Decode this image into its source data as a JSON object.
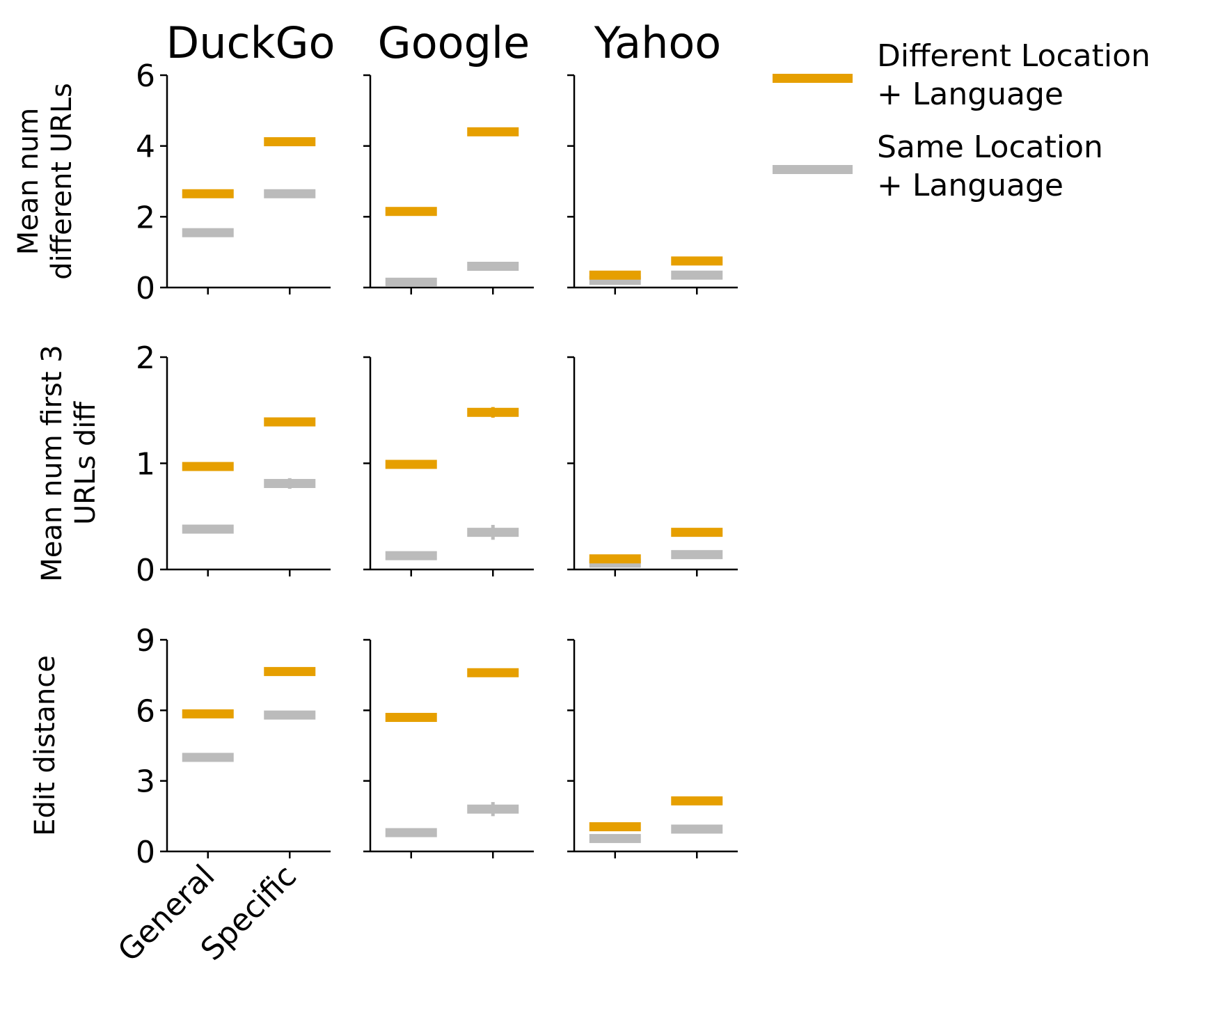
{
  "chart_data": {
    "type": "scatter",
    "layout": "3x3 small multiples",
    "columns": [
      "DuckGo",
      "Google",
      "Yahoo"
    ],
    "categories": [
      "General",
      "Specific"
    ],
    "series_names": [
      "Different Location + Language",
      "Same Location + Language"
    ],
    "legend": {
      "placement": "right",
      "entries": [
        {
          "label": "Different Location\n+ Language",
          "color": "#E69F00"
        },
        {
          "label": "Same Location\n+ Language",
          "color": "#BBBBBB"
        }
      ]
    },
    "rows": [
      {
        "ylabel": "Mean num\ndifferent URLs",
        "ylim": [
          0,
          6
        ],
        "yticks": [
          0,
          2,
          4,
          6
        ],
        "ytick_labels": [
          "0",
          "2",
          "4",
          "6"
        ],
        "panels": [
          {
            "engine": "DuckGo",
            "series": [
              {
                "name": "Different Location + Language",
                "values": [
                  2.65,
                  4.12
                ],
                "err": [
                  0.04,
                  0.05
                ]
              },
              {
                "name": "Same Location + Language",
                "values": [
                  1.55,
                  2.65
                ],
                "err": [
                  0.04,
                  0.08
                ]
              }
            ]
          },
          {
            "engine": "Google",
            "series": [
              {
                "name": "Different Location + Language",
                "values": [
                  2.15,
                  4.4
                ],
                "err": [
                  0.05,
                  0.1
                ]
              },
              {
                "name": "Same Location + Language",
                "values": [
                  0.15,
                  0.6
                ],
                "err": [
                  0.03,
                  0.06
                ]
              }
            ]
          },
          {
            "engine": "Yahoo",
            "series": [
              {
                "name": "Different Location + Language",
                "values": [
                  0.35,
                  0.75
                ],
                "err": [
                  0.03,
                  0.04
                ]
              },
              {
                "name": "Same Location + Language",
                "values": [
                  0.2,
                  0.35
                ],
                "err": [
                  0.03,
                  0.04
                ]
              }
            ]
          }
        ]
      },
      {
        "ylabel": "Mean num first 3\nURLs diff",
        "ylim": [
          0,
          2
        ],
        "yticks": [
          0,
          1,
          2
        ],
        "ytick_labels": [
          "0",
          "1",
          "2"
        ],
        "panels": [
          {
            "engine": "DuckGo",
            "series": [
              {
                "name": "Different Location + Language",
                "values": [
                  0.97,
                  1.39
                ],
                "err": [
                  0.02,
                  0.02
                ]
              },
              {
                "name": "Same Location + Language",
                "values": [
                  0.38,
                  0.81
                ],
                "err": [
                  0.02,
                  0.05
                ]
              }
            ]
          },
          {
            "engine": "Google",
            "series": [
              {
                "name": "Different Location + Language",
                "values": [
                  0.99,
                  1.48
                ],
                "err": [
                  0.03,
                  0.05
                ]
              },
              {
                "name": "Same Location + Language",
                "values": [
                  0.13,
                  0.35
                ],
                "err": [
                  0.03,
                  0.07
                ]
              }
            ]
          },
          {
            "engine": "Yahoo",
            "series": [
              {
                "name": "Different Location + Language",
                "values": [
                  0.1,
                  0.35
                ],
                "err": [
                  0.02,
                  0.02
                ]
              },
              {
                "name": "Same Location + Language",
                "values": [
                  0.06,
                  0.14
                ],
                "err": [
                  0.02,
                  0.02
                ]
              }
            ]
          }
        ]
      },
      {
        "ylabel": "Edit distance",
        "ylim": [
          0,
          9
        ],
        "yticks": [
          0,
          3,
          6,
          9
        ],
        "ytick_labels": [
          "0",
          "3",
          "6",
          "9"
        ],
        "panels": [
          {
            "engine": "DuckGo",
            "series": [
              {
                "name": "Different Location + Language",
                "values": [
                  5.85,
                  7.65
                ],
                "err": [
                  0.08,
                  0.08
                ]
              },
              {
                "name": "Same Location + Language",
                "values": [
                  4.0,
                  5.8
                ],
                "err": [
                  0.08,
                  0.1
                ]
              }
            ]
          },
          {
            "engine": "Google",
            "series": [
              {
                "name": "Different Location + Language",
                "values": [
                  5.7,
                  7.6
                ],
                "err": [
                  0.1,
                  0.12
                ]
              },
              {
                "name": "Same Location + Language",
                "values": [
                  0.8,
                  1.8
                ],
                "err": [
                  0.1,
                  0.3
                ]
              }
            ]
          },
          {
            "engine": "Yahoo",
            "series": [
              {
                "name": "Different Location + Language",
                "values": [
                  1.05,
                  2.15
                ],
                "err": [
                  0.1,
                  0.1
                ]
              },
              {
                "name": "Same Location + Language",
                "values": [
                  0.55,
                  0.95
                ],
                "err": [
                  0.1,
                  0.1
                ]
              }
            ]
          }
        ]
      }
    ]
  }
}
